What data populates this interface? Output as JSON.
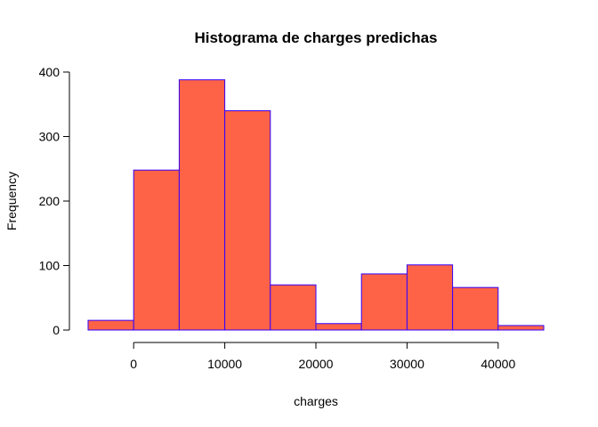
{
  "chart_data": {
    "type": "bar",
    "title": "Histograma de charges predichas",
    "xlabel": "charges",
    "ylabel": "Frequency",
    "bin_edges": [
      -5000,
      0,
      5000,
      10000,
      15000,
      20000,
      25000,
      30000,
      35000,
      40000,
      45000
    ],
    "values": [
      15,
      248,
      388,
      340,
      70,
      10,
      87,
      101,
      66,
      7
    ],
    "x_ticks": [
      0,
      10000,
      20000,
      30000,
      40000
    ],
    "x_tick_labels": [
      "0",
      "10000",
      "20000",
      "30000",
      "40000"
    ],
    "y_ticks": [
      0,
      100,
      200,
      300,
      400
    ],
    "y_tick_labels": [
      "0",
      "100",
      "200",
      "300",
      "400"
    ],
    "xlim": [
      -5000,
      45000
    ],
    "ylim": [
      0,
      400
    ],
    "grid": false,
    "colors": {
      "fill": "#ff6347",
      "border": "#3300ff"
    }
  }
}
